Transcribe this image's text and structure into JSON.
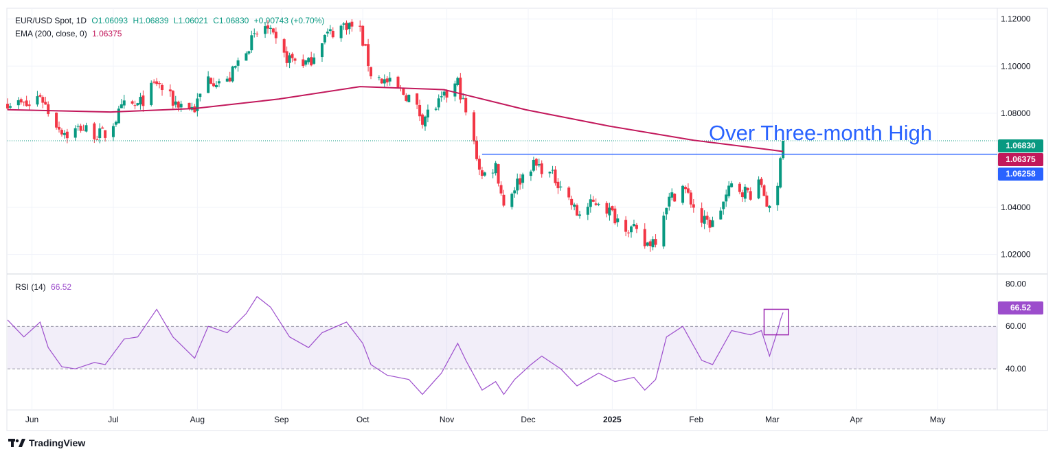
{
  "header": {
    "symbol": "EUR/USD Spot, 1D",
    "open": "O1.06093",
    "high": "H1.06839",
    "low": "L1.06021",
    "close": "C1.06830",
    "change": "+0.00743 (+0.70%)"
  },
  "ema_legend": {
    "label": "EMA (200, close, 0)",
    "value": "1.06375"
  },
  "rsi_legend": {
    "label": "RSI (14)",
    "value": "66.52"
  },
  "annotation": "Over Three-month High",
  "tags": {
    "last": "1.06830",
    "ema": "1.06375",
    "level": "1.06258"
  },
  "brand": "TradingView",
  "colors": {
    "up": "#089981",
    "down": "#f23645",
    "ema": "#c2185b",
    "level": "#2962ff",
    "rsi": "#9c4dcc"
  },
  "chart_data": [
    {
      "type": "candlestick",
      "title": "EUR/USD Spot, 1D",
      "y_ticks": [
        "1.12000",
        "1.10000",
        "1.08000",
        "1.04000",
        "1.02000"
      ],
      "ylim": [
        1.012,
        1.124
      ],
      "x_ticks": [
        "Jun",
        "Jul",
        "Aug",
        "Sep",
        "Oct",
        "Nov",
        "Dec",
        "2025",
        "Feb",
        "Mar",
        "Apr",
        "May"
      ],
      "x_range": [
        "2024-05-23",
        "2025-05-23"
      ],
      "price_anchors": [
        [
          "2024-05-23",
          1.085
        ],
        [
          "2024-05-31",
          1.083
        ],
        [
          "2024-06-04",
          1.088
        ],
        [
          "2024-06-07",
          1.081
        ],
        [
          "2024-06-11",
          1.074
        ],
        [
          "2024-06-14",
          1.071
        ],
        [
          "2024-06-19",
          1.074
        ],
        [
          "2024-06-25",
          1.071
        ],
        [
          "2024-06-28",
          1.071
        ],
        [
          "2024-07-05",
          1.083
        ],
        [
          "2024-07-10",
          1.083
        ],
        [
          "2024-07-17",
          1.093
        ],
        [
          "2024-07-23",
          1.085
        ],
        [
          "2024-07-31",
          1.082
        ],
        [
          "2024-08-05",
          1.095
        ],
        [
          "2024-08-12",
          1.093
        ],
        [
          "2024-08-19",
          1.108
        ],
        [
          "2024-08-26",
          1.117
        ],
        [
          "2024-09-02",
          1.104
        ],
        [
          "2024-09-11",
          1.101
        ],
        [
          "2024-09-16",
          1.112
        ],
        [
          "2024-09-25",
          1.118
        ],
        [
          "2024-09-30",
          1.115
        ],
        [
          "2024-10-04",
          1.097
        ],
        [
          "2024-10-10",
          1.093
        ],
        [
          "2024-10-18",
          1.087
        ],
        [
          "2024-10-23",
          1.078
        ],
        [
          "2024-10-30",
          1.085
        ],
        [
          "2024-11-05",
          1.093
        ],
        [
          "2024-11-08",
          1.08
        ],
        [
          "2024-11-14",
          1.053
        ],
        [
          "2024-11-19",
          1.058
        ],
        [
          "2024-11-22",
          1.041
        ],
        [
          "2024-11-26",
          1.049
        ],
        [
          "2024-12-02",
          1.058
        ],
        [
          "2024-12-06",
          1.057
        ],
        [
          "2024-12-13",
          1.05
        ],
        [
          "2024-12-19",
          1.037
        ],
        [
          "2024-12-27",
          1.043
        ],
        [
          "2025-01-02",
          1.036
        ],
        [
          "2025-01-09",
          1.03
        ],
        [
          "2025-01-13",
          1.024
        ],
        [
          "2025-01-17",
          1.027
        ],
        [
          "2025-01-21",
          1.042
        ],
        [
          "2025-01-27",
          1.049
        ],
        [
          "2025-02-03",
          1.034
        ],
        [
          "2025-02-07",
          1.033
        ],
        [
          "2025-02-14",
          1.049
        ],
        [
          "2025-02-21",
          1.046
        ],
        [
          "2025-02-25",
          1.05
        ],
        [
          "2025-02-28",
          1.038
        ],
        [
          "2025-03-03",
          1.048
        ],
        [
          "2025-03-04",
          1.0609
        ],
        [
          "2025-03-05",
          1.0683
        ]
      ],
      "last_candle": {
        "date": "2025-03-05",
        "open": 1.06093,
        "high": 1.06839,
        "low": 1.06021,
        "close": 1.0683
      },
      "series": [
        {
          "name": "EMA (200, close, 0)",
          "points": [
            [
              "2024-05-23",
              1.0815
            ],
            [
              "2024-06-30",
              1.0805
            ],
            [
              "2024-07-31",
              1.082
            ],
            [
              "2024-08-31",
              1.086
            ],
            [
              "2024-09-30",
              1.0913
            ],
            [
              "2024-10-31",
              1.09
            ],
            [
              "2024-11-30",
              1.0815
            ],
            [
              "2024-12-31",
              1.0745
            ],
            [
              "2025-01-31",
              1.0685
            ],
            [
              "2025-02-28",
              1.0645
            ],
            [
              "2025-03-05",
              1.06375
            ]
          ]
        }
      ],
      "horizontal_line": {
        "value": 1.06258,
        "from": "2024-11-14",
        "to": "2025-05-23"
      },
      "last_price_line": 1.0683
    },
    {
      "type": "line",
      "title": "RSI (14)",
      "y_ticks": [
        "80.00",
        "60.00",
        "40.00"
      ],
      "ylim": [
        21,
        83
      ],
      "band": [
        40,
        60
      ],
      "series": [
        {
          "name": "RSI (14)",
          "points": [
            [
              "2024-05-23",
              63
            ],
            [
              "2024-05-29",
              55
            ],
            [
              "2024-06-04",
              62
            ],
            [
              "2024-06-07",
              50
            ],
            [
              "2024-06-12",
              41
            ],
            [
              "2024-06-17",
              40
            ],
            [
              "2024-06-24",
              43
            ],
            [
              "2024-06-28",
              42
            ],
            [
              "2024-07-05",
              54
            ],
            [
              "2024-07-10",
              55
            ],
            [
              "2024-07-17",
              68
            ],
            [
              "2024-07-23",
              55
            ],
            [
              "2024-07-31",
              45
            ],
            [
              "2024-08-05",
              60
            ],
            [
              "2024-08-12",
              57
            ],
            [
              "2024-08-19",
              66
            ],
            [
              "2024-08-23",
              74
            ],
            [
              "2024-08-28",
              69
            ],
            [
              "2024-09-04",
              55
            ],
            [
              "2024-09-11",
              50
            ],
            [
              "2024-09-16",
              57
            ],
            [
              "2024-09-25",
              62
            ],
            [
              "2024-10-01",
              52
            ],
            [
              "2024-10-04",
              42
            ],
            [
              "2024-10-10",
              37
            ],
            [
              "2024-10-18",
              35
            ],
            [
              "2024-10-23",
              28
            ],
            [
              "2024-10-30",
              38
            ],
            [
              "2024-11-05",
              52
            ],
            [
              "2024-11-08",
              44
            ],
            [
              "2024-11-14",
              30
            ],
            [
              "2024-11-19",
              34
            ],
            [
              "2024-11-22",
              28
            ],
            [
              "2024-11-26",
              35
            ],
            [
              "2024-12-02",
              42
            ],
            [
              "2024-12-06",
              46
            ],
            [
              "2024-12-13",
              40
            ],
            [
              "2024-12-19",
              32
            ],
            [
              "2024-12-27",
              38
            ],
            [
              "2025-01-02",
              34
            ],
            [
              "2025-01-09",
              36
            ],
            [
              "2025-01-13",
              30
            ],
            [
              "2025-01-17",
              35
            ],
            [
              "2025-01-21",
              55
            ],
            [
              "2025-01-27",
              60
            ],
            [
              "2025-02-03",
              44
            ],
            [
              "2025-02-07",
              42
            ],
            [
              "2025-02-14",
              58
            ],
            [
              "2025-02-21",
              56
            ],
            [
              "2025-02-25",
              58
            ],
            [
              "2025-02-28",
              46
            ],
            [
              "2025-03-03",
              58
            ],
            [
              "2025-03-04",
              63
            ],
            [
              "2025-03-05",
              66.52
            ]
          ]
        }
      ],
      "highlight_box": {
        "from": "2025-02-26",
        "to": "2025-03-07",
        "y_range": [
          56,
          68
        ]
      }
    }
  ]
}
